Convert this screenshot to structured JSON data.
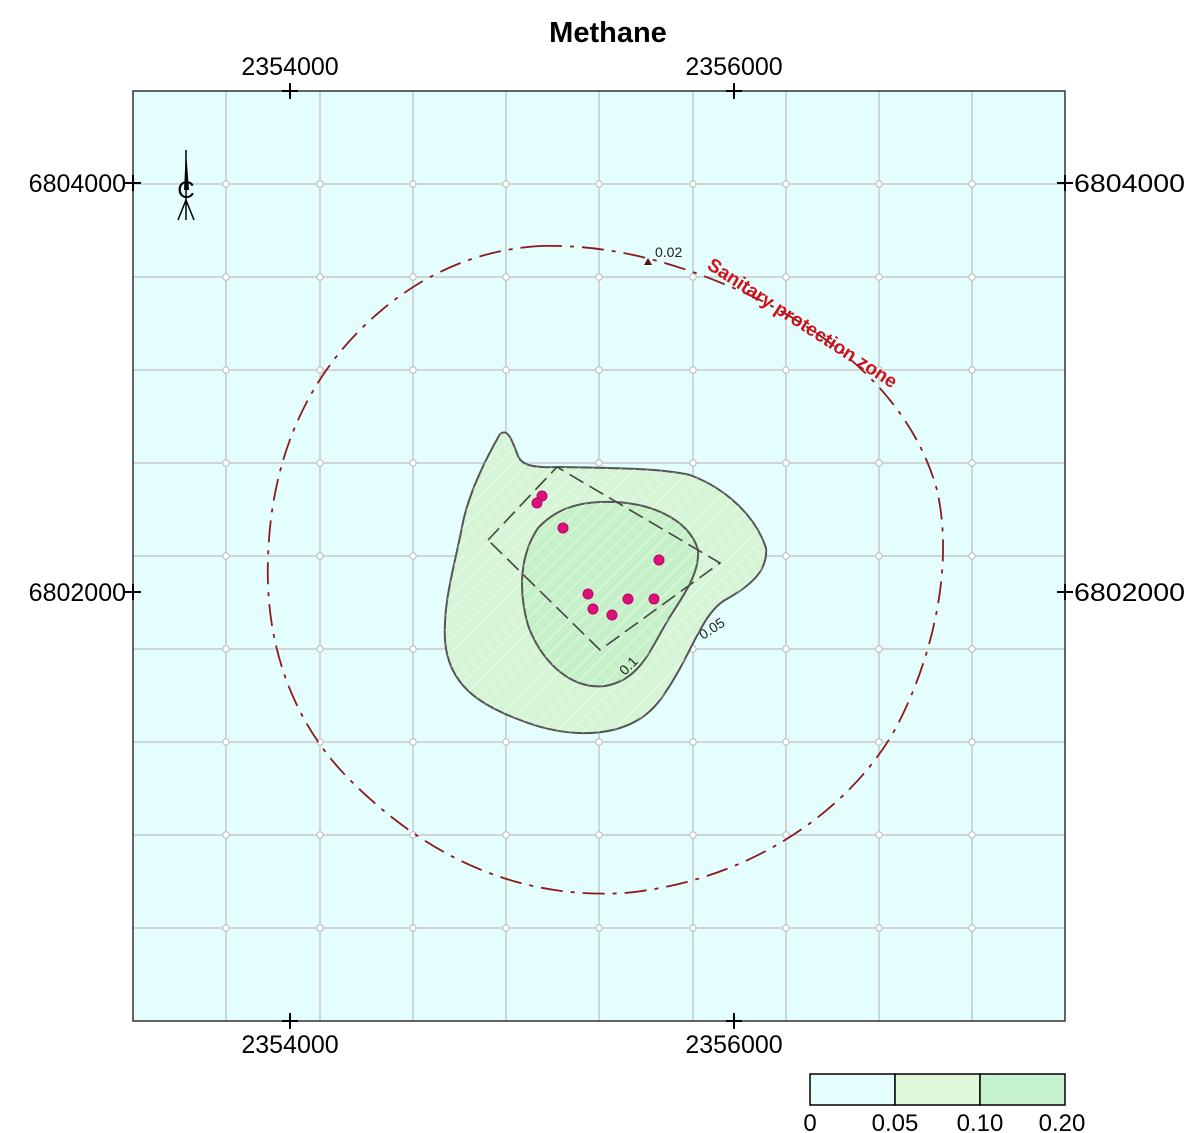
{
  "title": "Methane",
  "x_ticks": [
    "2354000",
    "2356000"
  ],
  "y_ticks": [
    "6804000",
    "6802000"
  ],
  "compass": {
    "icon": "north-arrow-icon",
    "letter": "C"
  },
  "contours": [
    {
      "level": "0.05",
      "label": "0.05"
    },
    {
      "level": "0.1",
      "label": "0.1"
    }
  ],
  "point_label": "0.02",
  "zone_label": "Sanitary protection zone",
  "legend": {
    "labels": [
      "0",
      "0.05",
      "0.10",
      "0.20"
    ],
    "colors": [
      "#e4fdfd",
      "#dff8d9",
      "#c6f2cf"
    ]
  },
  "colors": {
    "map_background": "#e4fdfd",
    "grid": "#c7c9c9",
    "fill_low": "#d6f5d6",
    "fill_high": "#c6f0c8",
    "contour_line": "#555555",
    "zone_line": "#8c1a1a",
    "source_points": "#e0107a"
  },
  "source_point_count": 9
}
